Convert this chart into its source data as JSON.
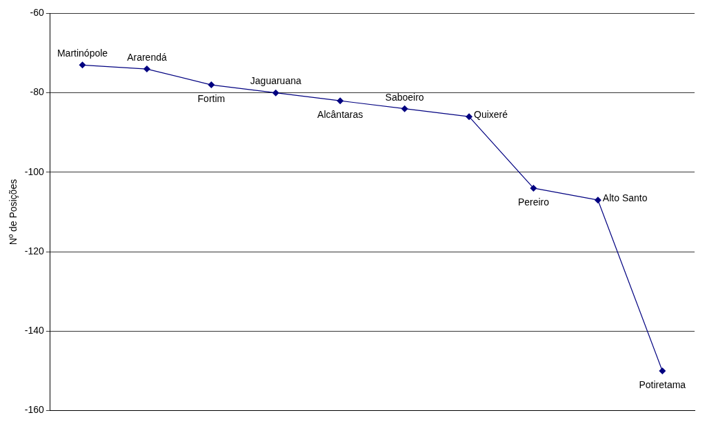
{
  "chart_data": {
    "type": "line",
    "ylabel": "Nº de Posições",
    "categories": [
      null,
      null,
      null,
      null,
      null,
      null,
      null,
      null,
      null,
      null
    ],
    "series": [
      {
        "color": "#000080",
        "values": [
          -73,
          -74,
          -78,
          -80,
          -82,
          -84,
          -86,
          -104,
          -107,
          -150
        ]
      }
    ],
    "annotations": [
      {
        "text": "Martinópole",
        "y": -73
      },
      {
        "text": "Ararendá",
        "y": -74
      },
      {
        "text": "Fortim",
        "y": -78
      },
      {
        "text": "Jaguaruana",
        "y": -80
      },
      {
        "text": "Alcântaras",
        "y": -82
      },
      {
        "text": "Saboeiro",
        "y": -84
      },
      "Quixeré",
      {
        "text": "Pereiro",
        "y": -104
      },
      "Alto Santo",
      {
        "text": "Potiretama",
        "y": -150
      }
    ],
    "ylim": [
      -160,
      -60
    ],
    "yticks": [
      -160,
      -140,
      -120,
      -100,
      -80,
      -60
    ],
    "grid": "y",
    "legend": false,
    "marker": "diamond",
    "line_style": "solid",
    "tick_labels": "y"
  }
}
